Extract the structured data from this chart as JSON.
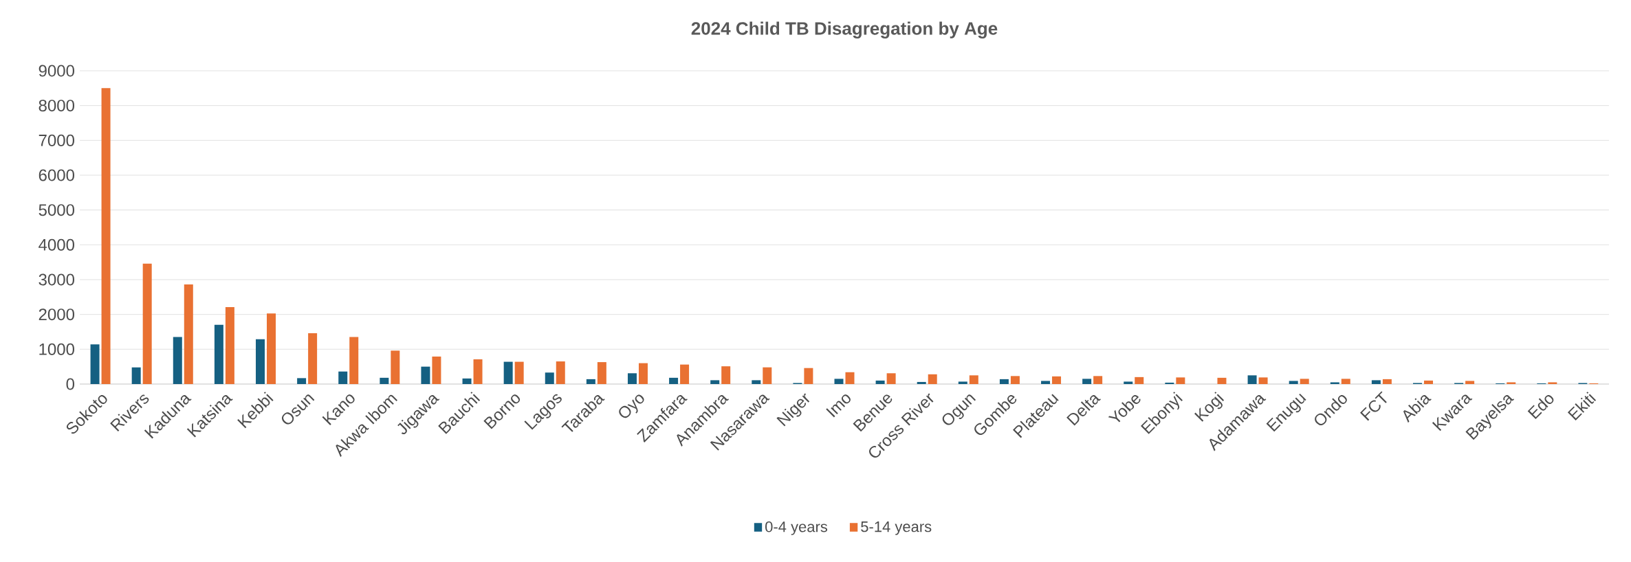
{
  "chart_data": {
    "type": "bar",
    "title": "2024 Child TB Disagregation by Age",
    "categories": [
      "Sokoto",
      "Rivers",
      "Kaduna",
      "Katsina",
      "Kebbi",
      "Osun",
      "Kano",
      "Akwa Ibom",
      "Jigawa",
      "Bauchi",
      "Borno",
      "Lagos",
      "Taraba",
      "Oyo",
      "Zamfara",
      "Anambra",
      "Nasarawa",
      "Niger",
      "Imo",
      "Benue",
      "Cross River",
      "Ogun",
      "Gombe",
      "Plateau",
      "Delta",
      "Yobe",
      "Ebonyi",
      "Kogi",
      "Adamawa",
      "Enugu",
      "Ondo",
      "FCT",
      "Abia",
      "Kwara",
      "Bayelsa",
      "Edo",
      "Ekiti"
    ],
    "series": [
      {
        "name": "0-4 years",
        "color": "#156082",
        "values": [
          1140,
          480,
          1350,
          1700,
          1290,
          170,
          360,
          180,
          500,
          160,
          640,
          330,
          140,
          310,
          180,
          110,
          110,
          30,
          150,
          100,
          60,
          70,
          140,
          90,
          150,
          70,
          40,
          0,
          250,
          90,
          50,
          110,
          30,
          30,
          20,
          20,
          30
        ]
      },
      {
        "name": "5-14 years",
        "color": "#e97132",
        "values": [
          8500,
          3460,
          2860,
          2210,
          2030,
          1460,
          1350,
          960,
          790,
          710,
          640,
          650,
          630,
          600,
          560,
          510,
          480,
          460,
          340,
          310,
          280,
          250,
          230,
          220,
          230,
          200,
          190,
          180,
          190,
          150,
          150,
          140,
          100,
          90,
          50,
          50,
          20
        ]
      }
    ],
    "ylim": [
      0,
      9000
    ],
    "yticks": [
      0,
      1000,
      2000,
      3000,
      4000,
      5000,
      6000,
      7000,
      8000,
      9000
    ],
    "grid": "y",
    "legend": "bottom"
  }
}
